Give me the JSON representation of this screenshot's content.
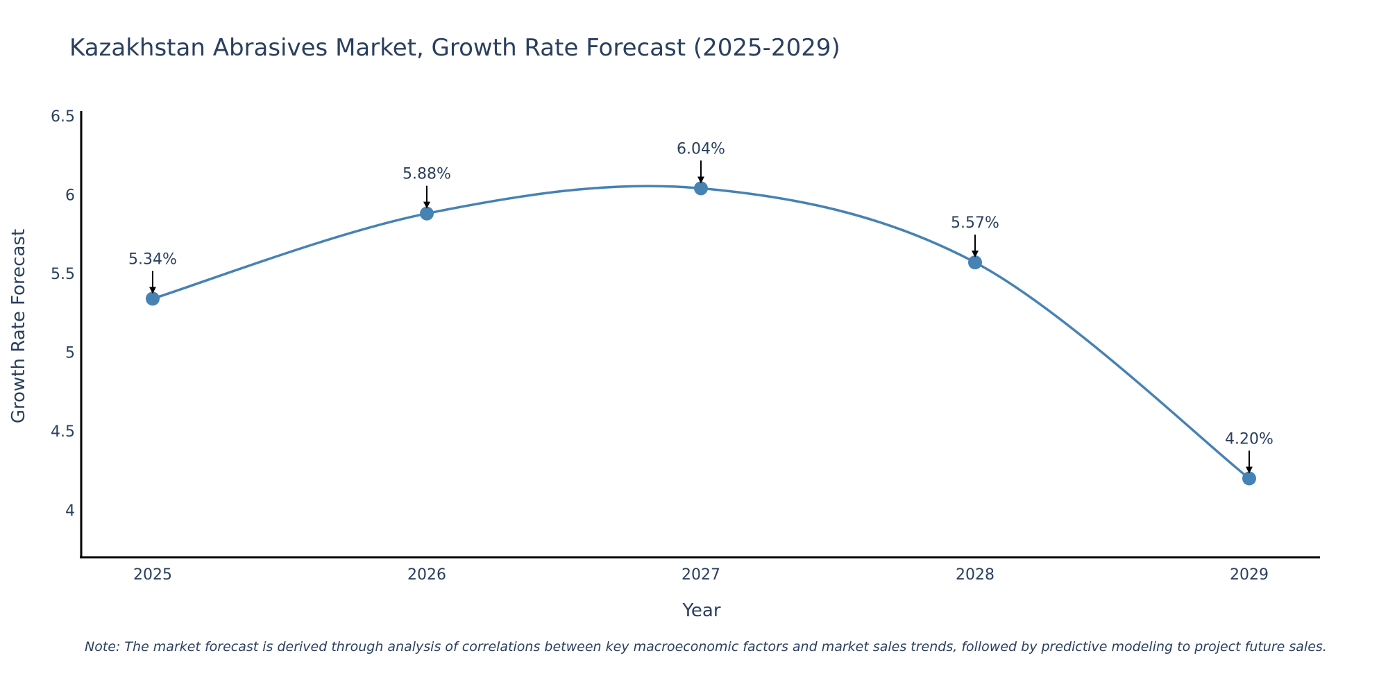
{
  "chart_data": {
    "type": "line",
    "title": "Kazakhstan Abrasives Market, Growth Rate Forecast (2025-2029)",
    "xlabel": "Year",
    "ylabel": "Growth Rate Forecast",
    "categories": [
      "2025",
      "2026",
      "2027",
      "2028",
      "2029"
    ],
    "values": [
      5.34,
      5.88,
      6.04,
      5.57,
      4.2
    ],
    "data_labels": [
      "5.34%",
      "5.88%",
      "6.04%",
      "5.57%",
      "4.20%"
    ],
    "y_ticks": [
      "4",
      "4.5",
      "5",
      "5.5",
      "6",
      "6.5"
    ],
    "ylim": [
      3.7,
      6.53
    ],
    "grid": false,
    "line_color": "#4682b4",
    "note": "Note: The market forecast is derived through analysis of correlations between key macroeconomic factors and market sales trends, followed by predictive modeling to project future sales."
  }
}
